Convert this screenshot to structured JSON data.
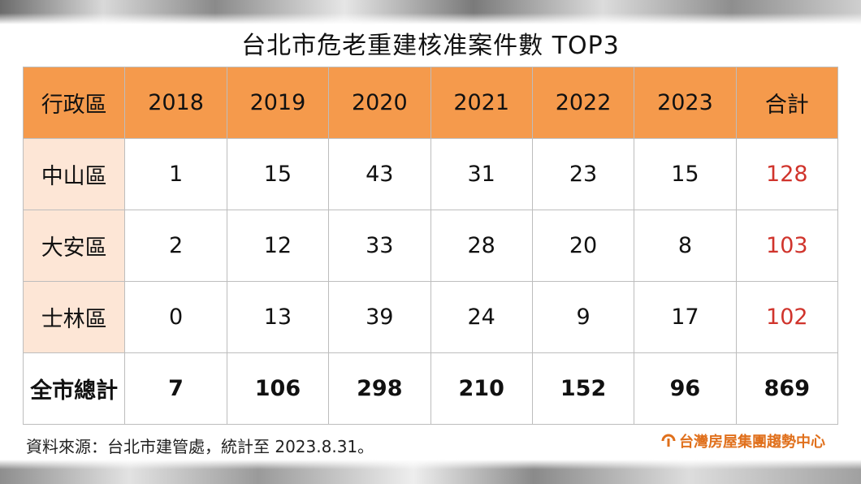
{
  "title": "台北市危老重建核准案件數 TOP3",
  "chart_data": {
    "type": "table",
    "title": "台北市危老重建核准案件數 TOP3",
    "columns": [
      "行政區",
      "2018",
      "2019",
      "2020",
      "2021",
      "2022",
      "2023",
      "合計"
    ],
    "rows": [
      {
        "label": "中山區",
        "values": [
          "1",
          "15",
          "43",
          "31",
          "23",
          "15"
        ],
        "total": "128"
      },
      {
        "label": "大安區",
        "values": [
          "2",
          "12",
          "33",
          "28",
          "20",
          "8"
        ],
        "total": "103"
      },
      {
        "label": "士林區",
        "values": [
          "0",
          "13",
          "39",
          "24",
          "9",
          "17"
        ],
        "total": "102"
      }
    ],
    "grand_total": {
      "label": "全市總計",
      "values": [
        "7",
        "106",
        "298",
        "210",
        "152",
        "96"
      ],
      "total": "869"
    }
  },
  "source": "資料來源：台北市建管處，統計至 2023.8.31。",
  "brand": "台灣房屋集團趨勢中心",
  "colors": {
    "header_bg": "#f59a4c",
    "row_label_bg": "#fde6d6",
    "total_red": "#d0342c",
    "brand_orange": "#e0701c"
  }
}
